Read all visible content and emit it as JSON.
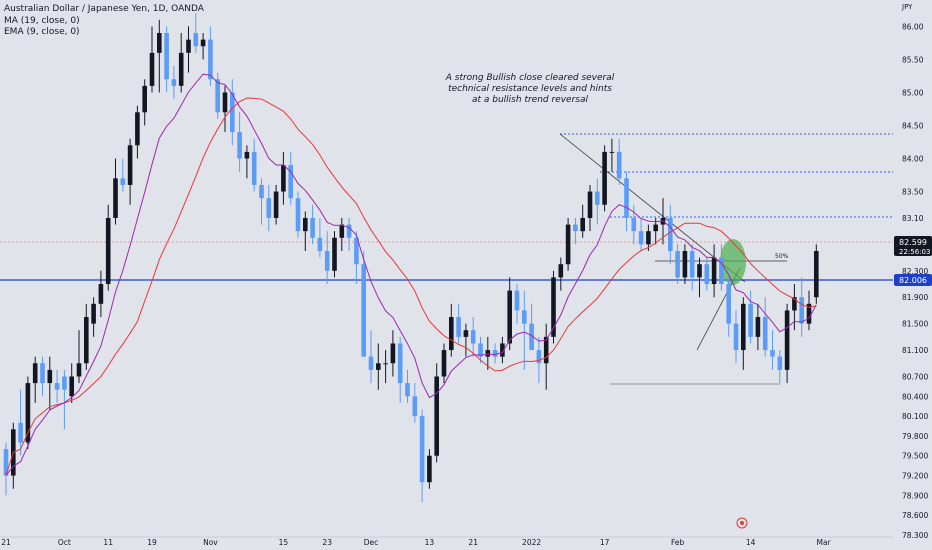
{
  "legend": {
    "symbol": "Australian Dollar / Japanese Yen, 1D, OANDA",
    "ma": "MA (19, close, 0)",
    "ema": "EMA (9, close, 0)"
  },
  "annotation": {
    "line1": "A strong Bullish close cleared several",
    "line2": "technical resistance levels and hints",
    "line3": "at a bullish trend reversal"
  },
  "colors": {
    "background": "#e1e3eb",
    "bull": "#131722",
    "bear": "#5b9cf6",
    "ma": "#e5393a",
    "ema": "#9c27b0",
    "support_line": "#1e40c8",
    "price_tag": "#131722",
    "support_tag": "#1e40c8",
    "highlight": "#4caf50",
    "dotted": "#2962ff"
  },
  "chart_data": {
    "type": "candlestick",
    "symbol": "AUDJPY",
    "interval": "1D",
    "ylim": [
      78.3,
      86.4
    ],
    "y_ticks": [
      "86.00",
      "85.50",
      "85.00",
      "84.50",
      "84.00",
      "83.50",
      "83.10",
      "82.700",
      "82.300",
      "81.900",
      "81.500",
      "81.100",
      "80.700",
      "80.400",
      "80.100",
      "79.800",
      "79.500",
      "79.200",
      "78.900",
      "78.600",
      "78.300"
    ],
    "x_ticks": [
      {
        "label": "21",
        "idx": 0
      },
      {
        "label": "Oct",
        "idx": 8
      },
      {
        "label": "11",
        "idx": 14
      },
      {
        "label": "19",
        "idx": 20
      },
      {
        "label": "Nov",
        "idx": 28
      },
      {
        "label": "15",
        "idx": 38
      },
      {
        "label": "23",
        "idx": 44
      },
      {
        "label": "Dec",
        "idx": 50
      },
      {
        "label": "13",
        "idx": 58
      },
      {
        "label": "21",
        "idx": 64
      },
      {
        "label": "2022",
        "idx": 72
      },
      {
        "label": "17",
        "idx": 82
      },
      {
        "label": "Feb",
        "idx": 92
      },
      {
        "label": "14",
        "idx": 102
      },
      {
        "label": "Mar",
        "idx": 112
      }
    ],
    "candles": [
      [
        79.6,
        79.7,
        78.9,
        79.2
      ],
      [
        79.2,
        80.0,
        79.0,
        79.9
      ],
      [
        80.0,
        80.5,
        79.5,
        79.7
      ],
      [
        79.7,
        80.7,
        79.6,
        80.6
      ],
      [
        80.6,
        81.0,
        80.3,
        80.9
      ],
      [
        80.9,
        81.0,
        80.4,
        80.6
      ],
      [
        80.6,
        81.0,
        80.2,
        80.8
      ],
      [
        80.6,
        80.8,
        80.3,
        80.5
      ],
      [
        80.7,
        80.8,
        79.9,
        80.5
      ],
      [
        80.4,
        80.9,
        80.3,
        80.7
      ],
      [
        80.7,
        81.4,
        80.6,
        80.9
      ],
      [
        80.9,
        81.8,
        80.8,
        81.6
      ],
      [
        81.5,
        81.9,
        81.3,
        81.8
      ],
      [
        81.8,
        82.3,
        81.6,
        82.1
      ],
      [
        82.1,
        83.3,
        82.0,
        83.1
      ],
      [
        83.1,
        84.0,
        83.0,
        83.7
      ],
      [
        83.7,
        84.0,
        83.5,
        83.6
      ],
      [
        83.6,
        84.3,
        83.3,
        84.2
      ],
      [
        84.2,
        84.8,
        84.0,
        84.7
      ],
      [
        84.7,
        85.2,
        84.5,
        85.1
      ],
      [
        85.1,
        86.0,
        85.0,
        85.6
      ],
      [
        85.6,
        86.1,
        85.0,
        85.9
      ],
      [
        85.9,
        86.0,
        85.0,
        85.2
      ],
      [
        85.2,
        85.4,
        84.9,
        85.1
      ],
      [
        85.1,
        85.9,
        85.0,
        85.6
      ],
      [
        85.6,
        86.0,
        85.3,
        85.8
      ],
      [
        85.9,
        86.2,
        85.6,
        85.7
      ],
      [
        85.7,
        85.9,
        85.5,
        85.8
      ],
      [
        85.8,
        86.0,
        85.1,
        85.2
      ],
      [
        85.2,
        85.3,
        84.6,
        84.7
      ],
      [
        84.7,
        85.1,
        84.4,
        85.0
      ],
      [
        85.0,
        85.2,
        84.2,
        84.4
      ],
      [
        84.4,
        84.7,
        83.8,
        84.0
      ],
      [
        84.0,
        84.2,
        83.7,
        84.1
      ],
      [
        84.1,
        84.3,
        83.5,
        83.6
      ],
      [
        83.6,
        83.7,
        83.0,
        83.4
      ],
      [
        83.4,
        83.6,
        82.9,
        83.1
      ],
      [
        83.1,
        83.6,
        83.0,
        83.5
      ],
      [
        83.5,
        84.1,
        83.3,
        83.9
      ],
      [
        83.9,
        84.1,
        83.3,
        83.4
      ],
      [
        83.4,
        83.5,
        82.8,
        82.9
      ],
      [
        82.9,
        83.2,
        82.6,
        83.1
      ],
      [
        83.1,
        83.3,
        82.7,
        82.8
      ],
      [
        82.8,
        83.1,
        82.5,
        82.6
      ],
      [
        82.6,
        82.9,
        82.1,
        82.3
      ],
      [
        82.3,
        82.9,
        82.2,
        82.8
      ],
      [
        82.8,
        83.1,
        82.6,
        83.0
      ],
      [
        83.0,
        83.1,
        82.6,
        82.8
      ],
      [
        82.8,
        82.9,
        82.1,
        82.4
      ],
      [
        82.4,
        82.6,
        81.0,
        81.0
      ],
      [
        81.0,
        81.4,
        80.6,
        80.8
      ],
      [
        80.8,
        81.2,
        80.5,
        80.9
      ],
      [
        80.9,
        81.1,
        80.6,
        80.9
      ],
      [
        80.9,
        81.4,
        80.7,
        81.2
      ],
      [
        81.2,
        81.3,
        80.3,
        80.6
      ],
      [
        80.6,
        80.8,
        80.3,
        80.4
      ],
      [
        80.4,
        80.6,
        80.0,
        80.1
      ],
      [
        80.1,
        80.2,
        78.8,
        79.1
      ],
      [
        79.1,
        79.6,
        79.0,
        79.5
      ],
      [
        79.5,
        80.9,
        79.4,
        80.7
      ],
      [
        80.7,
        81.2,
        80.6,
        81.1
      ],
      [
        81.1,
        81.8,
        81.0,
        81.6
      ],
      [
        81.6,
        81.8,
        81.2,
        81.3
      ],
      [
        81.3,
        81.5,
        81.0,
        81.4
      ],
      [
        81.4,
        81.6,
        81.0,
        81.2
      ],
      [
        81.2,
        81.3,
        80.9,
        81.0
      ],
      [
        81.0,
        81.3,
        80.8,
        81.1
      ],
      [
        81.1,
        81.2,
        80.9,
        81.0
      ],
      [
        81.0,
        81.3,
        80.9,
        81.2
      ],
      [
        81.2,
        82.2,
        81.1,
        82.0
      ],
      [
        82.0,
        82.1,
        81.5,
        81.7
      ],
      [
        81.7,
        82.0,
        80.8,
        81.5
      ],
      [
        81.5,
        81.8,
        81.1,
        81.1
      ],
      [
        81.1,
        81.3,
        80.6,
        80.9
      ],
      [
        80.9,
        81.5,
        80.5,
        81.3
      ],
      [
        81.3,
        82.3,
        81.2,
        82.2
      ],
      [
        82.2,
        82.5,
        82.0,
        82.4
      ],
      [
        82.4,
        83.1,
        82.3,
        83.0
      ],
      [
        83.0,
        83.1,
        82.7,
        82.9
      ],
      [
        82.9,
        83.3,
        82.8,
        83.1
      ],
      [
        83.1,
        83.6,
        82.9,
        83.5
      ],
      [
        83.5,
        83.7,
        83.0,
        83.3
      ],
      [
        83.3,
        84.2,
        83.2,
        84.1
      ],
      [
        84.1,
        84.3,
        83.8,
        84.1
      ],
      [
        84.1,
        84.3,
        83.6,
        83.7
      ],
      [
        83.7,
        83.8,
        82.9,
        83.1
      ],
      [
        83.1,
        83.3,
        82.7,
        82.9
      ],
      [
        82.9,
        83.1,
        82.6,
        82.7
      ],
      [
        82.7,
        83.0,
        82.6,
        82.9
      ],
      [
        82.9,
        83.1,
        82.7,
        83.0
      ],
      [
        83.0,
        83.4,
        82.7,
        83.1
      ],
      [
        83.1,
        83.3,
        82.4,
        82.6
      ],
      [
        82.6,
        82.7,
        82.1,
        82.2
      ],
      [
        82.2,
        82.7,
        82.1,
        82.6
      ],
      [
        82.6,
        82.7,
        82.0,
        82.2
      ],
      [
        82.2,
        82.5,
        81.9,
        82.4
      ],
      [
        82.4,
        82.5,
        82.0,
        82.1
      ],
      [
        82.1,
        82.7,
        81.9,
        82.5
      ],
      [
        82.5,
        82.7,
        82.0,
        82.1
      ],
      [
        82.1,
        82.2,
        81.3,
        81.5
      ],
      [
        81.5,
        81.7,
        80.9,
        81.1
      ],
      [
        81.1,
        81.9,
        80.8,
        81.8
      ],
      [
        81.8,
        82.0,
        81.2,
        81.3
      ],
      [
        81.3,
        81.8,
        81.1,
        81.6
      ],
      [
        81.6,
        81.9,
        81.0,
        81.1
      ],
      [
        81.1,
        81.4,
        80.8,
        81.0
      ],
      [
        81.0,
        81.1,
        80.6,
        80.8
      ],
      [
        80.8,
        81.8,
        80.6,
        81.7
      ],
      [
        81.7,
        82.1,
        81.4,
        81.9
      ],
      [
        81.9,
        82.2,
        81.3,
        81.5
      ],
      [
        81.5,
        82.0,
        81.4,
        81.8
      ],
      [
        81.9,
        82.7,
        81.8,
        82.6
      ]
    ],
    "price_label": "82.599",
    "countdown_label": "22:56:03",
    "support_label": "82.006",
    "fib_label": "50%",
    "currency_label": "JPY"
  }
}
